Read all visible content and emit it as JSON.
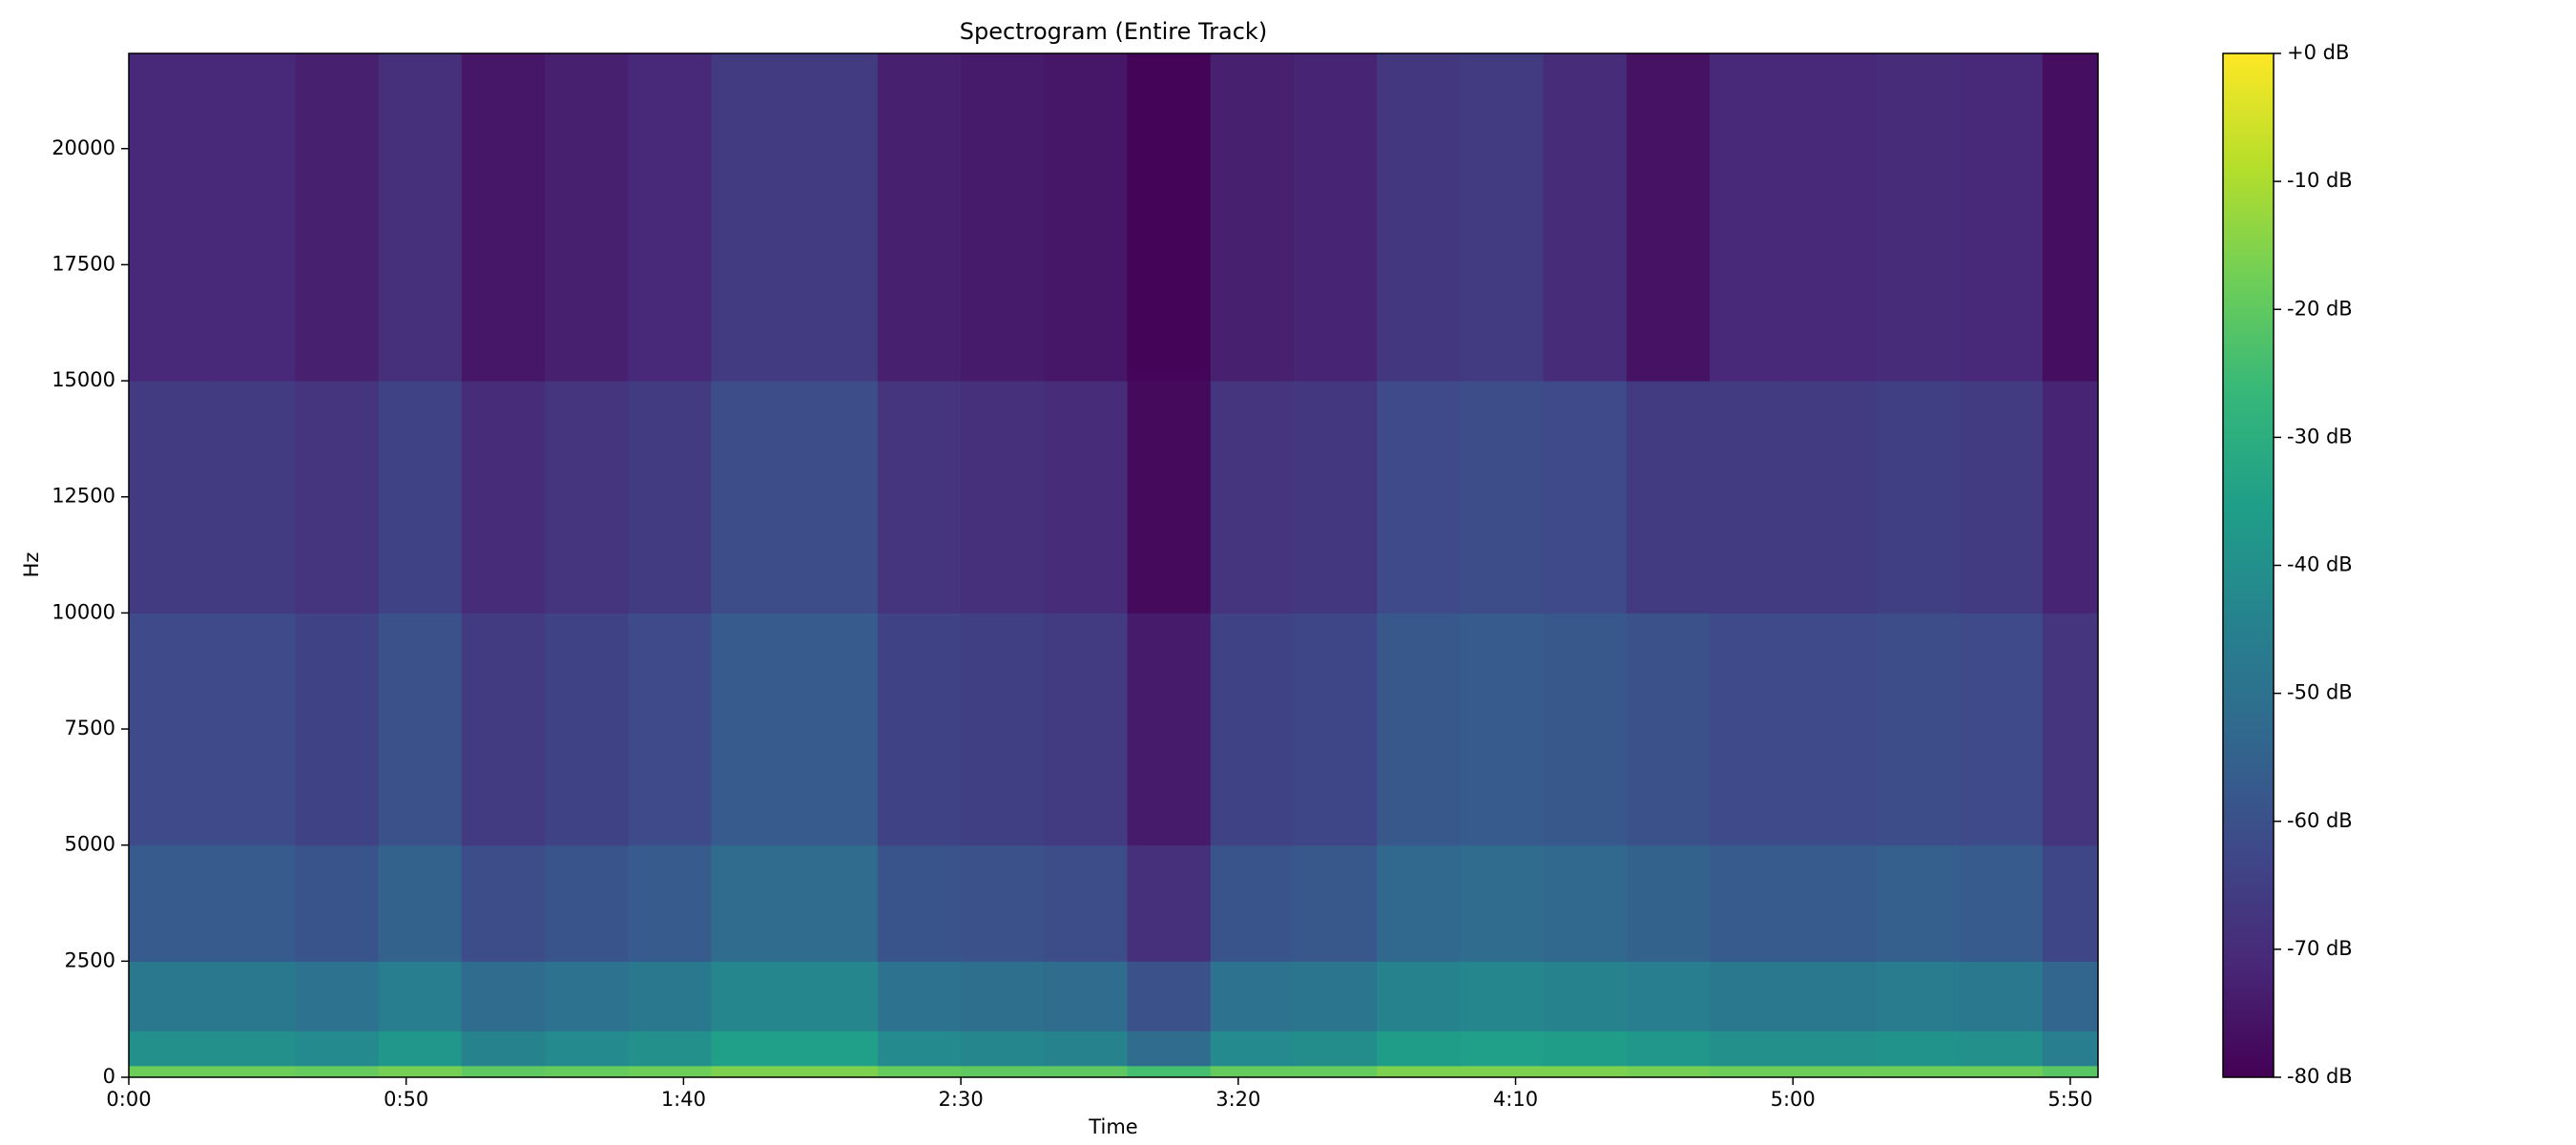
{
  "chart_data": {
    "type": "heatmap",
    "title": "Spectrogram (Entire Track)",
    "xlabel": "Time",
    "ylabel": "Hz",
    "x_edges": [
      0,
      15,
      30,
      45,
      60,
      75,
      90,
      105,
      120,
      135,
      150,
      165,
      180,
      195,
      210,
      225,
      240,
      255,
      270,
      285,
      300,
      315,
      330,
      345,
      355
    ],
    "y_edges": [
      0,
      250,
      1000,
      2500,
      5000,
      10000,
      15000,
      22050
    ],
    "z": [
      [
        -18,
        -18,
        -19,
        -17,
        -20,
        -19,
        -18,
        -16,
        -16,
        -19,
        -20,
        -20,
        -24,
        -19,
        -19,
        -16,
        -16,
        -16,
        -17,
        -18,
        -18,
        -18,
        -18,
        -21
      ],
      [
        -40,
        -40,
        -42,
        -38,
        -44,
        -42,
        -40,
        -35,
        -35,
        -42,
        -43,
        -44,
        -52,
        -42,
        -41,
        -36,
        -35,
        -36,
        -38,
        -40,
        -40,
        -39,
        -40,
        -46
      ],
      [
        -48,
        -48,
        -50,
        -46,
        -52,
        -50,
        -48,
        -43,
        -43,
        -50,
        -51,
        -52,
        -60,
        -50,
        -49,
        -44,
        -43,
        -44,
        -46,
        -48,
        -48,
        -47,
        -48,
        -54
      ],
      [
        -57,
        -57,
        -59,
        -55,
        -61,
        -59,
        -57,
        -52,
        -52,
        -59,
        -60,
        -61,
        -69,
        -59,
        -58,
        -53,
        -52,
        -53,
        -55,
        -57,
        -57,
        -56,
        -57,
        -63
      ],
      [
        -62,
        -62,
        -64,
        -60,
        -66,
        -64,
        -62,
        -57,
        -57,
        -64,
        -65,
        -66,
        -74,
        -64,
        -63,
        -58,
        -57,
        -58,
        -60,
        -62,
        -62,
        -61,
        -62,
        -68
      ],
      [
        -66,
        -66,
        -68,
        -64,
        -70,
        -68,
        -66,
        -61,
        -61,
        -68,
        -69,
        -70,
        -78,
        -68,
        -67,
        -62,
        -61,
        -62,
        -66,
        -66,
        -66,
        -65,
        -66,
        -72
      ],
      [
        -71,
        -71,
        -73,
        -69,
        -75,
        -73,
        -71,
        -66,
        -66,
        -73,
        -74,
        -75,
        -79,
        -73,
        -72,
        -67,
        -66,
        -70,
        -76,
        -71,
        -71,
        -70,
        -71,
        -77
      ]
    ],
    "xlim": [
      0,
      355
    ],
    "ylim": [
      0,
      22050
    ],
    "xticks": [
      {
        "value": 0,
        "label": "0:00"
      },
      {
        "value": 50,
        "label": "0:50"
      },
      {
        "value": 100,
        "label": "1:40"
      },
      {
        "value": 150,
        "label": "2:30"
      },
      {
        "value": 200,
        "label": "3:20"
      },
      {
        "value": 250,
        "label": "4:10"
      },
      {
        "value": 300,
        "label": "5:00"
      },
      {
        "value": 350,
        "label": "5:50"
      }
    ],
    "yticks": [
      0,
      2500,
      5000,
      7500,
      10000,
      12500,
      15000,
      17500,
      20000
    ],
    "zlim": [
      -80,
      0
    ],
    "zticks": [
      {
        "value": 0,
        "label": "+0 dB"
      },
      {
        "value": -10,
        "label": "-10 dB"
      },
      {
        "value": -20,
        "label": "-20 dB"
      },
      {
        "value": -30,
        "label": "-30 dB"
      },
      {
        "value": -40,
        "label": "-40 dB"
      },
      {
        "value": -50,
        "label": "-50 dB"
      },
      {
        "value": -60,
        "label": "-60 dB"
      },
      {
        "value": -70,
        "label": "-70 dB"
      },
      {
        "value": -80,
        "label": "-80 dB"
      }
    ],
    "colorscale": [
      "#440154",
      "#482878",
      "#3e4989",
      "#31688e",
      "#26828e",
      "#1f9e89",
      "#35b779",
      "#6ece58",
      "#b5de2b",
      "#fde725"
    ]
  }
}
